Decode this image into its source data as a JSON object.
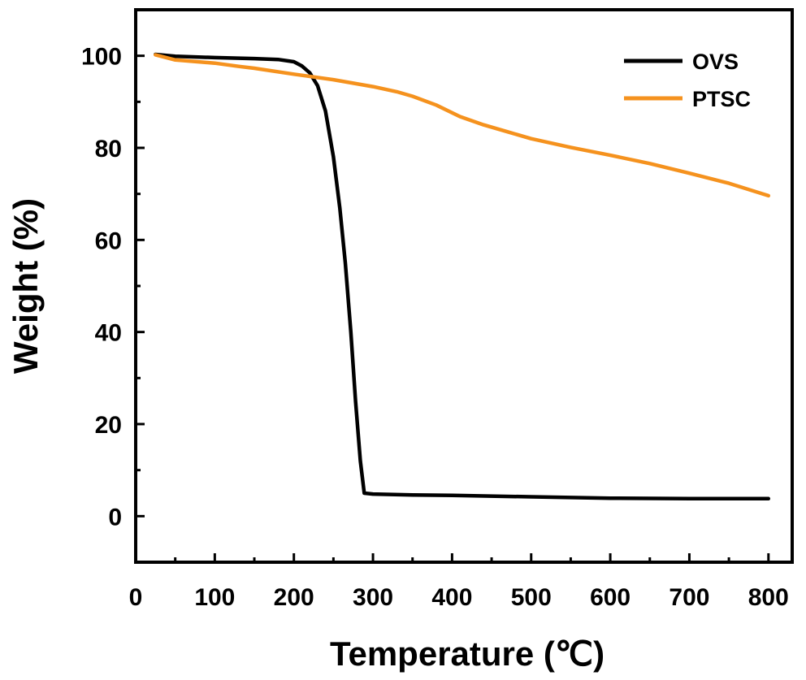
{
  "chart_data": {
    "type": "line",
    "xlabel": "Temperature (℃)",
    "ylabel": "Weight (%)",
    "xlim": [
      0,
      830
    ],
    "ylim": [
      -10,
      110
    ],
    "xticks": [
      0,
      100,
      200,
      300,
      400,
      500,
      600,
      700,
      800
    ],
    "yticks": [
      0,
      20,
      40,
      60,
      80,
      100
    ],
    "x_minor_step": 50,
    "y_minor_step": 10,
    "legend_position": "top-right",
    "series": [
      {
        "name": "OVS",
        "color": "#000000",
        "points": [
          [
            25,
            100.3
          ],
          [
            50,
            99.9
          ],
          [
            100,
            99.6
          ],
          [
            150,
            99.4
          ],
          [
            180,
            99.2
          ],
          [
            200,
            98.7
          ],
          [
            210,
            97.8
          ],
          [
            220,
            96.3
          ],
          [
            230,
            93.5
          ],
          [
            240,
            88.0
          ],
          [
            250,
            78.0
          ],
          [
            258,
            67.0
          ],
          [
            265,
            55.0
          ],
          [
            272,
            40.0
          ],
          [
            278,
            25.0
          ],
          [
            284,
            12.0
          ],
          [
            289,
            5.0
          ],
          [
            300,
            4.8
          ],
          [
            350,
            4.6
          ],
          [
            400,
            4.5
          ],
          [
            500,
            4.2
          ],
          [
            600,
            3.9
          ],
          [
            700,
            3.8
          ],
          [
            800,
            3.8
          ]
        ]
      },
      {
        "name": "PTSC",
        "color": "#F5921E",
        "points": [
          [
            25,
            100.2
          ],
          [
            50,
            99.1
          ],
          [
            100,
            98.4
          ],
          [
            130,
            97.7
          ],
          [
            150,
            97.3
          ],
          [
            200,
            96.0
          ],
          [
            250,
            94.8
          ],
          [
            300,
            93.3
          ],
          [
            330,
            92.2
          ],
          [
            350,
            91.2
          ],
          [
            380,
            89.3
          ],
          [
            410,
            86.8
          ],
          [
            440,
            85.0
          ],
          [
            470,
            83.5
          ],
          [
            500,
            82.0
          ],
          [
            550,
            80.1
          ],
          [
            600,
            78.4
          ],
          [
            650,
            76.6
          ],
          [
            700,
            74.5
          ],
          [
            750,
            72.3
          ],
          [
            800,
            69.6
          ]
        ]
      }
    ]
  }
}
